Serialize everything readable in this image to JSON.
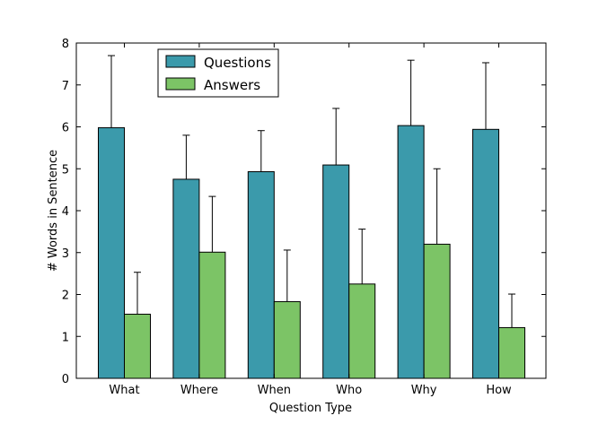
{
  "chart_data": {
    "type": "bar",
    "xlabel": "Question Type",
    "ylabel": "# Words in Sentence",
    "categories": [
      "What",
      "Where",
      "When",
      "Who",
      "Why",
      "How"
    ],
    "ylim": [
      0,
      8
    ],
    "yticks": [
      "0",
      "1",
      "2",
      "3",
      "4",
      "5",
      "6",
      "7",
      "8"
    ],
    "error_bars": true,
    "legend_position": "top-left",
    "series": [
      {
        "name": "Questions",
        "color": "#3b9aab",
        "values": [
          5.98,
          4.75,
          4.93,
          5.09,
          6.03,
          5.94
        ],
        "errors": [
          1.72,
          1.05,
          0.98,
          1.35,
          1.56,
          1.59
        ]
      },
      {
        "name": "Answers",
        "color": "#7cc466",
        "values": [
          1.53,
          3.01,
          1.83,
          2.25,
          3.2,
          1.21
        ],
        "errors": [
          1.0,
          1.33,
          1.23,
          1.31,
          1.8,
          0.8
        ]
      }
    ]
  }
}
